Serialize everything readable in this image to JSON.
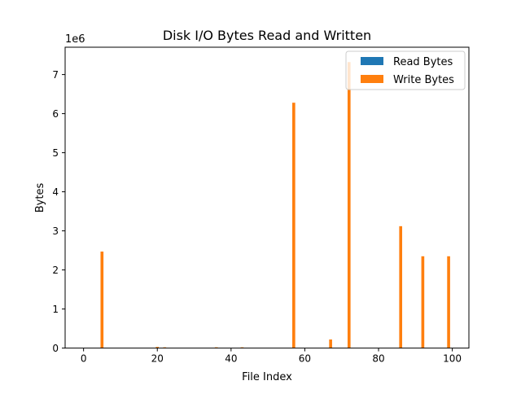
{
  "chart_data": {
    "type": "bar",
    "title": "Disk I/O Bytes Read and Written",
    "xlabel": "File Index",
    "ylabel": "Bytes",
    "y_offset_label": "1e6",
    "y_multiplier": 1000000,
    "xlim": [
      -5,
      104.5
    ],
    "ylim": [
      0,
      7.7
    ],
    "x_ticks": [
      0,
      20,
      40,
      60,
      80,
      100
    ],
    "y_ticks": [
      0,
      1,
      2,
      3,
      4,
      5,
      6,
      7
    ],
    "grid": false,
    "legend_position": "top-right",
    "bar_width": 0.8,
    "series": [
      {
        "name": "Read Bytes",
        "color": "#1f77b4",
        "points": []
      },
      {
        "name": "Write Bytes",
        "color": "#ff7f0e",
        "points": [
          {
            "x": 5,
            "y": 2.47
          },
          {
            "x": 20,
            "y": 0.03
          },
          {
            "x": 22,
            "y": 0.02
          },
          {
            "x": 36,
            "y": 0.02
          },
          {
            "x": 43,
            "y": 0.02
          },
          {
            "x": 57,
            "y": 6.28
          },
          {
            "x": 67,
            "y": 0.22
          },
          {
            "x": 72,
            "y": 7.32
          },
          {
            "x": 86,
            "y": 3.12
          },
          {
            "x": 92,
            "y": 2.35
          },
          {
            "x": 99,
            "y": 2.35
          }
        ]
      }
    ]
  }
}
